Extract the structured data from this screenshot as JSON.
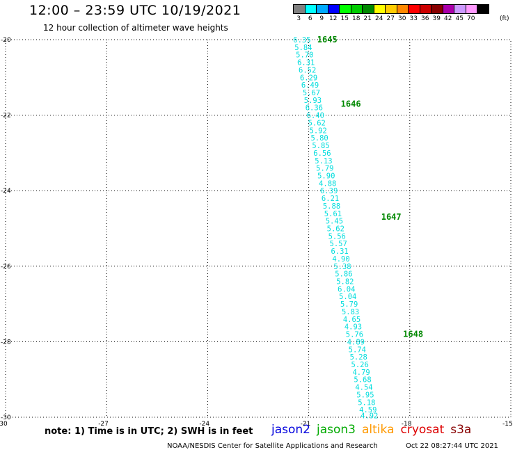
{
  "header": {
    "title": "12:00 – 23:59 UTC 10/19/2021",
    "subtitle": "12 hour collection of altimeter wave heights"
  },
  "colorbar": {
    "unit": "(ft)",
    "entries": [
      {
        "label": "3",
        "color": "#808080"
      },
      {
        "label": "6",
        "color": "#00ffff"
      },
      {
        "label": "9",
        "color": "#00aaff"
      },
      {
        "label": "12",
        "color": "#0000ff"
      },
      {
        "label": "15",
        "color": "#00ff00"
      },
      {
        "label": "18",
        "color": "#00cc00"
      },
      {
        "label": "21",
        "color": "#008800"
      },
      {
        "label": "24",
        "color": "#ffff00"
      },
      {
        "label": "27",
        "color": "#ffcc00"
      },
      {
        "label": "30",
        "color": "#ff8800"
      },
      {
        "label": "33",
        "color": "#ff0000"
      },
      {
        "label": "36",
        "color": "#cc0000"
      },
      {
        "label": "39",
        "color": "#880000"
      },
      {
        "label": "42",
        "color": "#aa00aa"
      },
      {
        "label": "45",
        "color": "#cc99ff"
      },
      {
        "label": "70",
        "color": "#ff99ff"
      },
      {
        "label": "",
        "color": "#000000"
      }
    ]
  },
  "chart_data": {
    "type": "scatter",
    "xlabel": "",
    "ylabel": "",
    "xlim": [
      -30,
      -15
    ],
    "ylim": [
      -30,
      -20
    ],
    "x_ticks": [
      -30,
      -27,
      -24,
      -21,
      -18,
      -15
    ],
    "y_ticks": [
      -20,
      -22,
      -24,
      -26,
      -28,
      -30
    ],
    "grid": true,
    "series": [
      {
        "name": "jason3",
        "color": "#00dddd",
        "points": [
          {
            "x": -21.2,
            "y": -20.0,
            "label": "6.35"
          },
          {
            "x": -21.16,
            "y": -20.2,
            "label": "5.84"
          },
          {
            "x": -21.12,
            "y": -20.4,
            "label": "5.70"
          },
          {
            "x": -21.08,
            "y": -20.6,
            "label": "6.31"
          },
          {
            "x": -21.04,
            "y": -20.8,
            "label": "6.52"
          },
          {
            "x": -21.0,
            "y": -21.0,
            "label": "6.29"
          },
          {
            "x": -20.96,
            "y": -21.2,
            "label": "6.49"
          },
          {
            "x": -20.92,
            "y": -21.4,
            "label": "5.67"
          },
          {
            "x": -20.88,
            "y": -21.6,
            "label": "5.93"
          },
          {
            "x": -20.84,
            "y": -21.8,
            "label": "6.36"
          },
          {
            "x": -20.8,
            "y": -22.0,
            "label": "6.40"
          },
          {
            "x": -20.76,
            "y": -22.2,
            "label": "5.62"
          },
          {
            "x": -20.72,
            "y": -22.4,
            "label": "5.92"
          },
          {
            "x": -20.68,
            "y": -22.6,
            "label": "5.80"
          },
          {
            "x": -20.64,
            "y": -22.8,
            "label": "5.85"
          },
          {
            "x": -20.6,
            "y": -23.0,
            "label": "6.56"
          },
          {
            "x": -20.56,
            "y": -23.2,
            "label": "5.13"
          },
          {
            "x": -20.52,
            "y": -23.4,
            "label": "5.79"
          },
          {
            "x": -20.48,
            "y": -23.6,
            "label": "5.90"
          },
          {
            "x": -20.44,
            "y": -23.8,
            "label": "4.88"
          },
          {
            "x": -20.4,
            "y": -24.0,
            "label": "6.39"
          },
          {
            "x": -20.36,
            "y": -24.2,
            "label": "6.21"
          },
          {
            "x": -20.32,
            "y": -24.4,
            "label": "5.88"
          },
          {
            "x": -20.28,
            "y": -24.6,
            "label": "5.61"
          },
          {
            "x": -20.24,
            "y": -24.8,
            "label": "5.45"
          },
          {
            "x": -20.2,
            "y": -25.0,
            "label": "5.62"
          },
          {
            "x": -20.16,
            "y": -25.2,
            "label": "5.56"
          },
          {
            "x": -20.12,
            "y": -25.4,
            "label": "5.57"
          },
          {
            "x": -20.08,
            "y": -25.6,
            "label": "6.31"
          },
          {
            "x": -20.04,
            "y": -25.8,
            "label": "4.90"
          },
          {
            "x": -20.0,
            "y": -26.0,
            "label": "5.38"
          },
          {
            "x": -19.96,
            "y": -26.2,
            "label": "5.86"
          },
          {
            "x": -19.92,
            "y": -26.4,
            "label": "5.82"
          },
          {
            "x": -19.88,
            "y": -26.6,
            "label": "6.04"
          },
          {
            "x": -19.84,
            "y": -26.8,
            "label": "5.04"
          },
          {
            "x": -19.8,
            "y": -27.0,
            "label": "5.79"
          },
          {
            "x": -19.76,
            "y": -27.2,
            "label": "5.83"
          },
          {
            "x": -19.72,
            "y": -27.4,
            "label": "4.65"
          },
          {
            "x": -19.68,
            "y": -27.6,
            "label": "4.93"
          },
          {
            "x": -19.64,
            "y": -27.8,
            "label": "5.76"
          },
          {
            "x": -19.6,
            "y": -28.0,
            "label": "4.89"
          },
          {
            "x": -19.56,
            "y": -28.2,
            "label": "5.74"
          },
          {
            "x": -19.52,
            "y": -28.4,
            "label": "5.28"
          },
          {
            "x": -19.48,
            "y": -28.6,
            "label": "5.26"
          },
          {
            "x": -19.44,
            "y": -28.8,
            "label": "4.79"
          },
          {
            "x": -19.4,
            "y": -29.0,
            "label": "5.68"
          },
          {
            "x": -19.36,
            "y": -29.2,
            "label": "4.54"
          },
          {
            "x": -19.32,
            "y": -29.4,
            "label": "5.95"
          },
          {
            "x": -19.28,
            "y": -29.6,
            "label": "5.18"
          },
          {
            "x": -19.24,
            "y": -29.8,
            "label": "4.59"
          },
          {
            "x": -19.2,
            "y": -29.95,
            "label": "4.92"
          }
        ]
      }
    ],
    "time_labels": [
      {
        "x": -20.45,
        "y": -20.0,
        "label": "1645"
      },
      {
        "x": -19.75,
        "y": -21.7,
        "label": "1646"
      },
      {
        "x": -18.55,
        "y": -24.7,
        "label": "1647"
      },
      {
        "x": -17.9,
        "y": -27.8,
        "label": "1648"
      }
    ]
  },
  "footer": {
    "note": "note: 1) Time is in UTC; 2) SWH is in feet",
    "satellites": [
      {
        "name": "jason2",
        "color": "#0000dd"
      },
      {
        "name": "jason3",
        "color": "#00aa00"
      },
      {
        "name": "altika",
        "color": "#ff9900"
      },
      {
        "name": "cryosat",
        "color": "#dd0000"
      },
      {
        "name": "s3a",
        "color": "#880000"
      }
    ],
    "credit": "NOAA/NESDIS Center for Satellite Applications and Research",
    "timestamp": "Oct 22 08:27:44 UTC 2021"
  }
}
